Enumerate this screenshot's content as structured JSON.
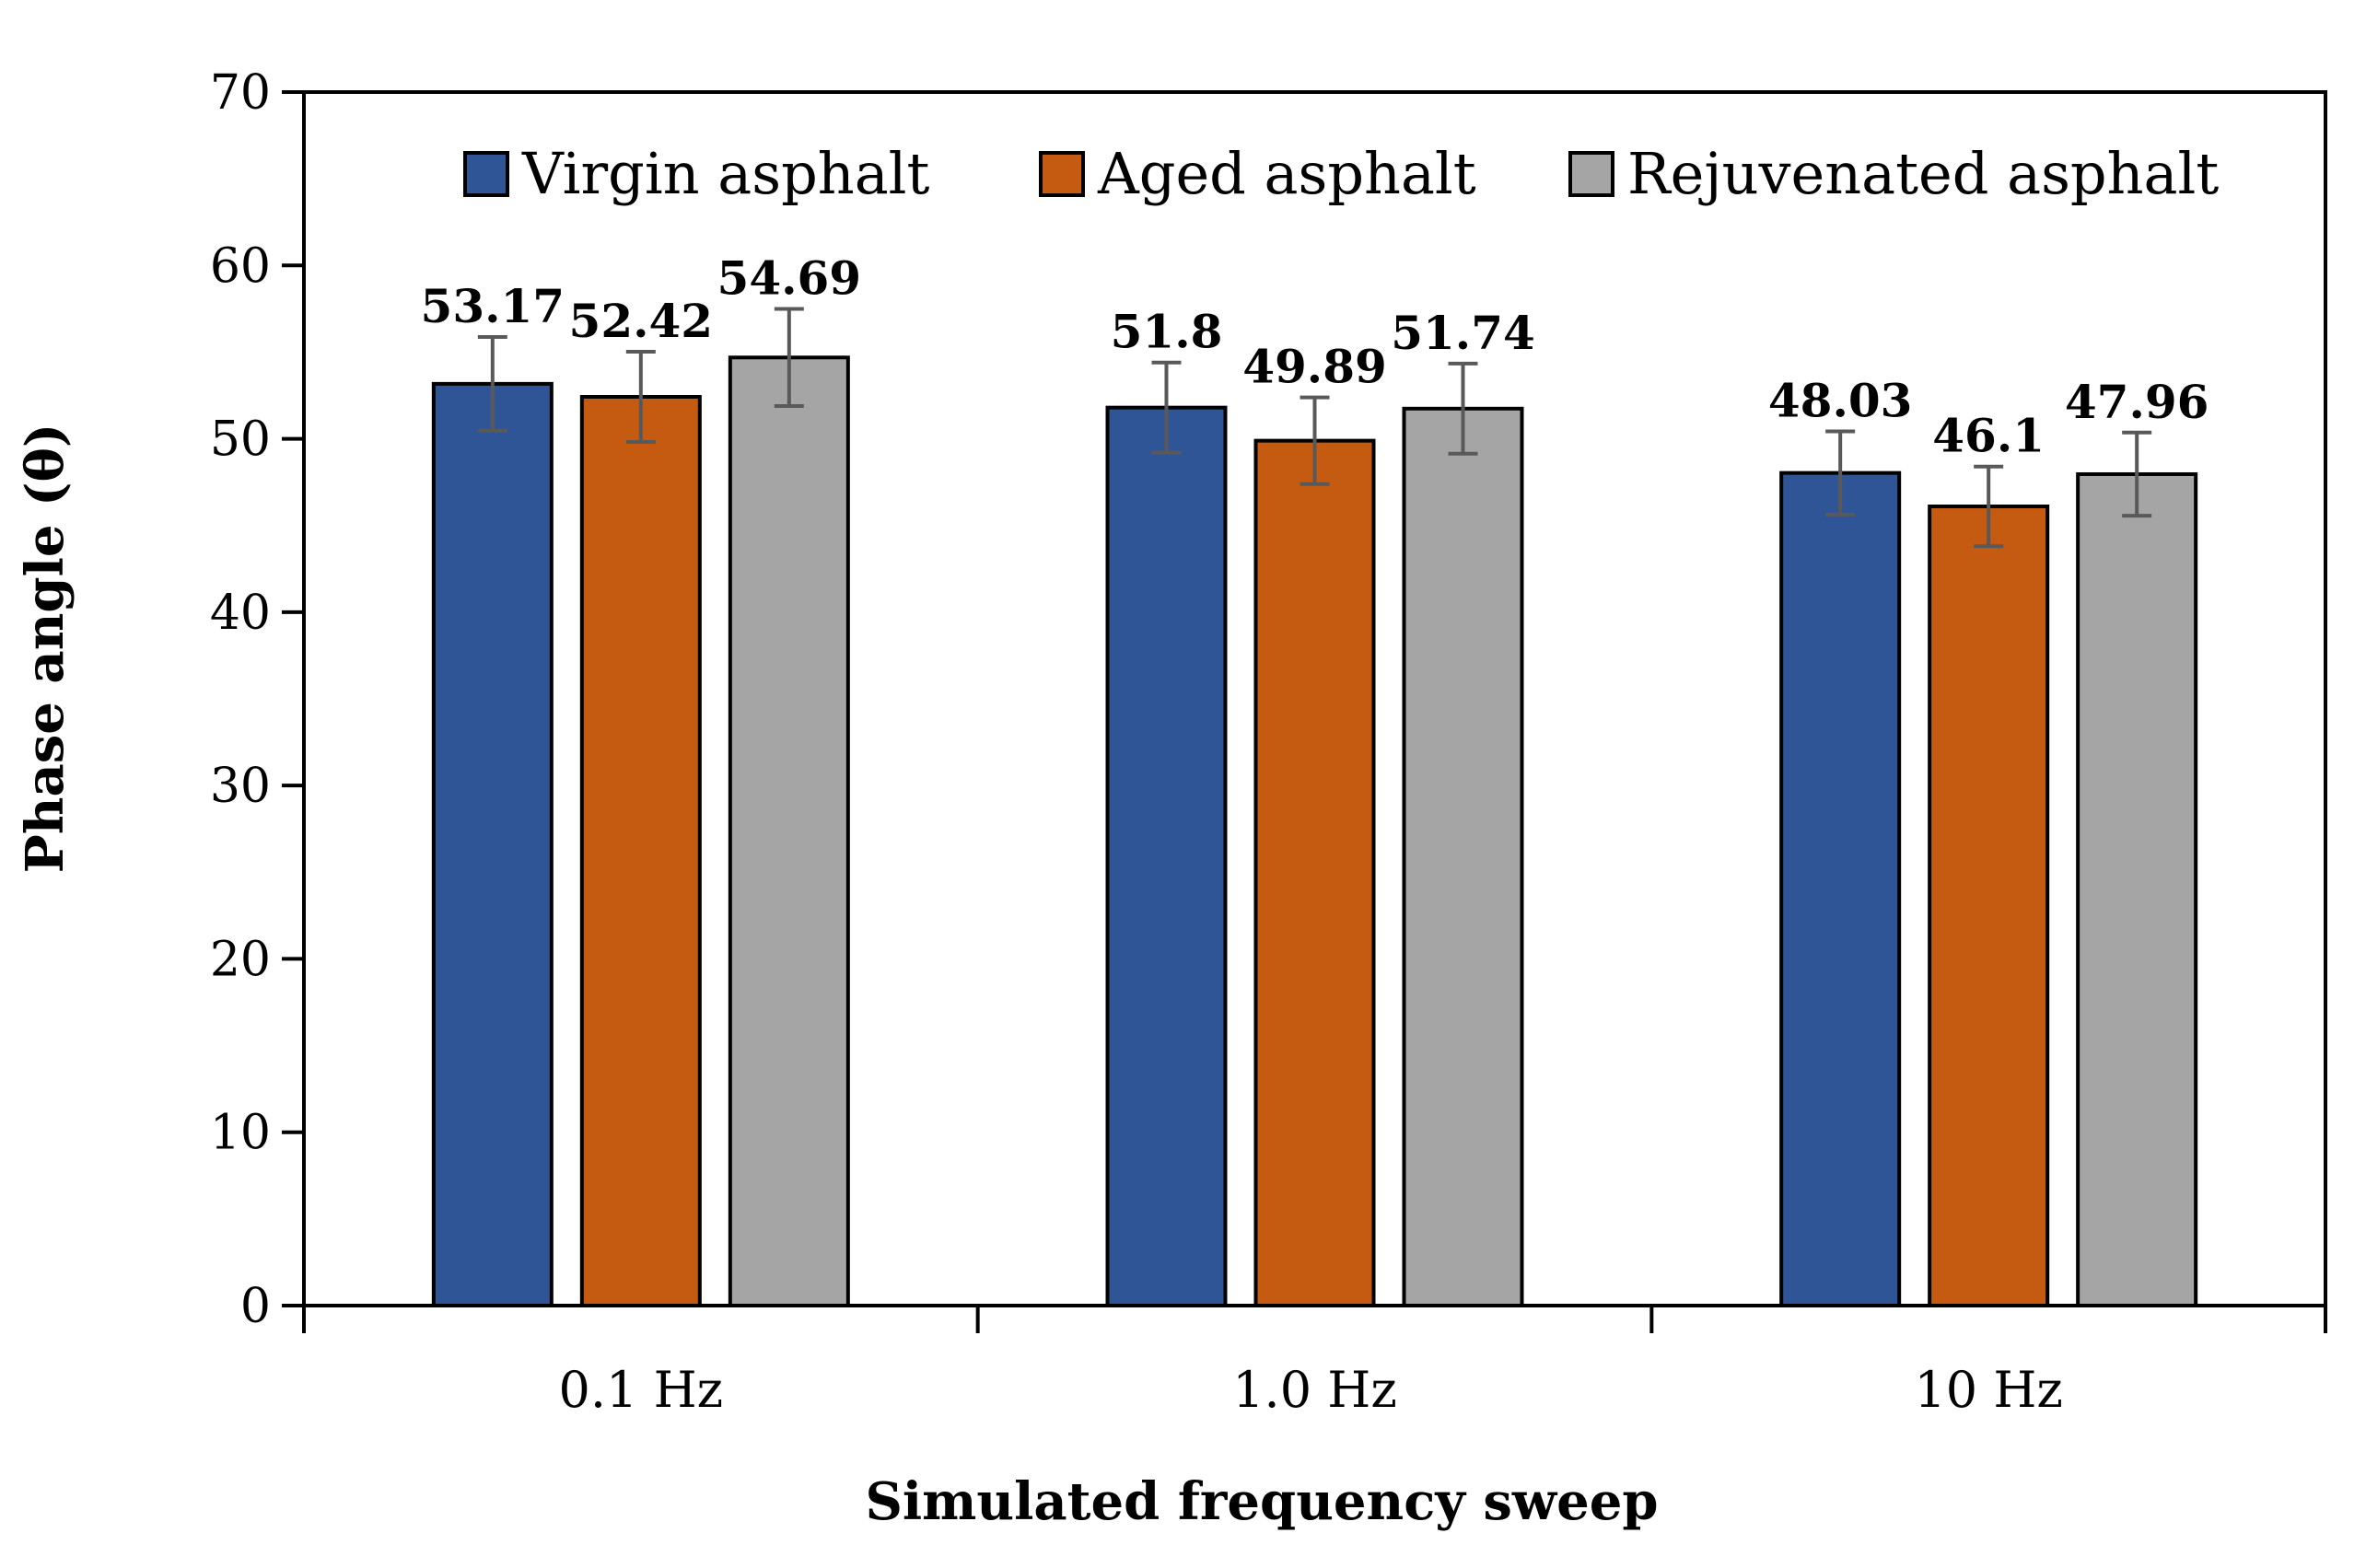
{
  "chart_data": {
    "type": "bar",
    "title": "",
    "xlabel": "Simulated frequency sweep",
    "ylabel": "Phase angle (θ)",
    "ylim": [
      0,
      70
    ],
    "yticks": [
      "0",
      "10",
      "20",
      "30",
      "40",
      "50",
      "60",
      "70"
    ],
    "categories": [
      "0.1 Hz",
      "1.0 Hz",
      "10 Hz"
    ],
    "grid": false,
    "legend_position": "top",
    "series": [
      {
        "name": "Virgin asphalt",
        "color": "#2F5597",
        "values": [
          53.17,
          51.8,
          48.03
        ],
        "labels": [
          "53.17",
          "51.8",
          "48.03"
        ],
        "error": [
          2.7,
          2.6,
          2.4
        ]
      },
      {
        "name": "Aged asphalt",
        "color": "#C55A11",
        "values": [
          52.42,
          49.89,
          46.1
        ],
        "labels": [
          "52.42",
          "49.89",
          "46.1"
        ],
        "error": [
          2.6,
          2.5,
          2.3
        ]
      },
      {
        "name": "Rejuvenated asphalt",
        "color": "#A5A5A5",
        "values": [
          54.69,
          51.74,
          47.96
        ],
        "labels": [
          "54.69",
          "51.74",
          "47.96"
        ],
        "error": [
          2.8,
          2.6,
          2.4
        ]
      }
    ]
  }
}
